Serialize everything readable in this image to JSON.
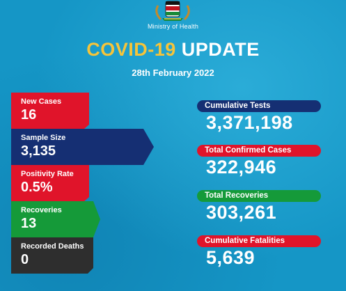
{
  "header": {
    "ministry": "Ministry of Health",
    "title_part1": "COVID-19",
    "title_part2": "UPDATE",
    "date": "28th February 2022",
    "emblem_icon": "coat-of-arms-emblem"
  },
  "left_stats": [
    {
      "label": "New Cases",
      "value": "16",
      "color": "#e0142a"
    },
    {
      "label": "Sample Size",
      "value": "3,135",
      "color": "#152f73"
    },
    {
      "label": "Positivity Rate",
      "value": "0.5%",
      "color": "#e0142a"
    },
    {
      "label": "Recoveries",
      "value": "13",
      "color": "#159a39"
    },
    {
      "label": "Recorded Deaths",
      "value": "0",
      "color": "#2e2e2e"
    }
  ],
  "right_stats": [
    {
      "label": "Cumulative Tests",
      "value": "3,371,198",
      "color": "#152f73"
    },
    {
      "label": "Total Confirmed Cases",
      "value": "322,946",
      "color": "#e0142a"
    },
    {
      "label": "Total Recoveries",
      "value": "303,261",
      "color": "#159a39"
    },
    {
      "label": "Cumulative Fatalities",
      "value": "5,639",
      "color": "#e0142a"
    }
  ],
  "colors": {
    "background": "#1596c6",
    "title_yellow": "#f5c43a"
  }
}
